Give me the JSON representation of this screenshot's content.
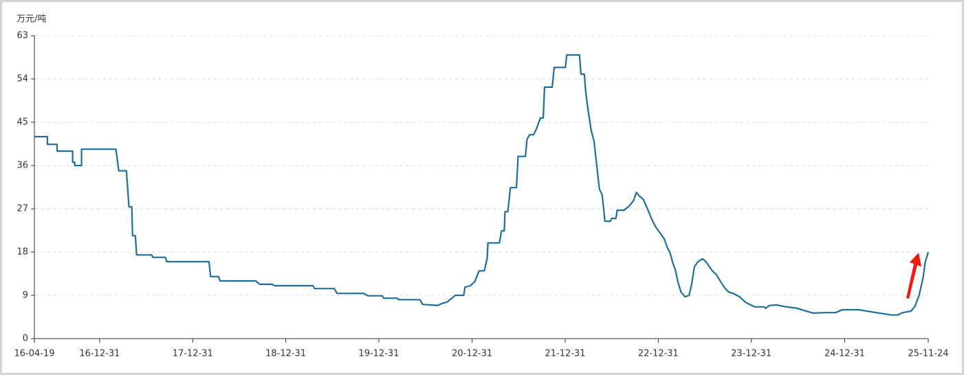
{
  "chart_data": {
    "type": "line",
    "y_label": "万元/吨",
    "x": [
      "16-04-19",
      "16-06-09",
      "16-06-09",
      "16-07-17",
      "16-07-17",
      "16-09-16",
      "16-09-16",
      "16-09-24",
      "16-09-24",
      "16-10-21",
      "16-10-21",
      "17-03-05",
      "17-03-16",
      "17-04-15",
      "17-04-25",
      "17-05-06",
      "17-05-09",
      "17-05-20",
      "17-05-25",
      "17-07-23",
      "17-07-28",
      "17-09-15",
      "17-09-20",
      "18-03-05",
      "18-03-11",
      "18-04-12",
      "18-04-17",
      "18-09-04",
      "18-09-20",
      "18-11-07",
      "18-11-18",
      "19-04-17",
      "19-04-23",
      "19-07-09",
      "19-07-20",
      "19-11-02",
      "19-11-18",
      "20-01-13",
      "20-01-19",
      "20-03-12",
      "20-03-18",
      "20-06-09",
      "20-06-20",
      "20-07-22",
      "20-08-18",
      "20-09-03",
      "20-09-24",
      "20-10-10",
      "20-10-26",
      "20-11-28",
      "20-12-03",
      "20-12-24",
      "21-01-11",
      "21-01-27",
      "21-02-17",
      "21-02-28",
      "21-03-03",
      "21-04-17",
      "21-04-25",
      "21-05-06",
      "21-05-09",
      "21-05-20",
      "21-05-30",
      "21-06-23",
      "21-06-29",
      "21-07-28",
      "21-08-03",
      "21-08-13",
      "21-08-29",
      "21-09-09",
      "21-09-25",
      "21-10-06",
      "21-10-11",
      "21-11-10",
      "21-11-18",
      "22-01-01",
      "22-01-06",
      "22-02-25",
      "22-03-03",
      "22-03-16",
      "22-03-22",
      "22-04-01",
      "22-04-12",
      "22-04-23",
      "22-05-03",
      "22-05-14",
      "22-05-25",
      "22-06-05",
      "22-06-26",
      "22-07-01",
      "22-07-18",
      "22-07-23",
      "22-08-19",
      "22-09-09",
      "22-09-25",
      "22-10-06",
      "22-10-17",
      "22-11-02",
      "22-11-18",
      "22-12-04",
      "22-12-20",
      "23-01-08",
      "23-01-24",
      "23-02-04",
      "23-02-15",
      "23-02-25",
      "23-03-08",
      "23-03-19",
      "23-03-30",
      "23-04-15",
      "23-05-01",
      "23-05-11",
      "23-05-22",
      "23-06-07",
      "23-06-23",
      "23-07-04",
      "23-07-15",
      "23-07-31",
      "23-08-16",
      "23-09-01",
      "23-09-17",
      "23-10-03",
      "23-10-25",
      "23-11-15",
      "23-12-07",
      "23-12-28",
      "24-01-13",
      "24-02-20",
      "24-02-25",
      "24-03-12",
      "24-04-08",
      "24-05-05",
      "24-06-28",
      "24-08-10",
      "24-08-31",
      "24-10-13",
      "24-11-25",
      "24-12-22",
      "25-02-25",
      "25-03-30",
      "25-05-17",
      "25-07-04",
      "25-07-26",
      "25-08-16",
      "25-09-17",
      "25-10-03",
      "25-10-19",
      "25-11-04",
      "25-11-12",
      "25-11-24"
    ],
    "series": [
      {
        "color": "#1c6e98",
        "values": [
          42.0,
          42.0,
          40.4,
          40.4,
          39.0,
          39.0,
          36.7,
          36.7,
          36.0,
          36.0,
          39.4,
          39.4,
          34.9,
          34.9,
          27.4,
          27.4,
          21.4,
          21.4,
          17.4,
          17.4,
          16.9,
          16.9,
          16.0,
          16.0,
          12.9,
          12.9,
          12.0,
          12.0,
          11.3,
          11.3,
          11.0,
          11.0,
          10.4,
          10.4,
          9.4,
          9.4,
          8.9,
          8.9,
          8.4,
          8.4,
          8.1,
          8.1,
          7.1,
          7.0,
          6.9,
          7.3,
          7.6,
          8.3,
          9.0,
          9.0,
          10.7,
          11.0,
          11.9,
          14.1,
          14.1,
          16.7,
          19.9,
          19.9,
          22.4,
          22.4,
          26.4,
          26.4,
          31.4,
          31.4,
          37.9,
          37.9,
          41.4,
          42.4,
          42.4,
          43.6,
          45.9,
          45.9,
          52.3,
          52.3,
          56.4,
          56.4,
          59.0,
          59.0,
          55.0,
          55.0,
          51.1,
          47.1,
          43.3,
          41.1,
          36.4,
          31.1,
          29.9,
          24.4,
          24.4,
          25.0,
          25.0,
          26.7,
          26.7,
          27.6,
          28.7,
          30.4,
          29.7,
          29.0,
          27.1,
          25.0,
          23.3,
          21.9,
          20.7,
          19.0,
          17.9,
          15.9,
          14.3,
          11.6,
          9.7,
          8.7,
          9.0,
          11.3,
          15.0,
          16.1,
          16.6,
          16.1,
          15.3,
          14.1,
          13.3,
          11.9,
          10.6,
          9.7,
          9.3,
          8.7,
          7.6,
          7.0,
          6.6,
          6.6,
          6.3,
          6.9,
          7.0,
          6.7,
          6.3,
          5.6,
          5.3,
          5.4,
          5.4,
          6.0,
          6.0,
          5.7,
          5.3,
          4.9,
          4.9,
          5.4,
          5.7,
          6.7,
          9.0,
          12.7,
          15.9,
          18.0
        ]
      }
    ],
    "xlim": [
      "16-04-19",
      "25-11-24"
    ],
    "xticks": [
      "16-04-19",
      "16-12-31",
      "17-12-31",
      "18-12-31",
      "19-12-31",
      "20-12-31",
      "21-12-31",
      "22-12-31",
      "23-12-31",
      "24-12-31",
      "25-11-24"
    ],
    "ylim": [
      0,
      63
    ],
    "yticks": [
      0,
      9,
      18,
      27,
      36,
      45,
      54,
      63
    ],
    "grid": true
  }
}
